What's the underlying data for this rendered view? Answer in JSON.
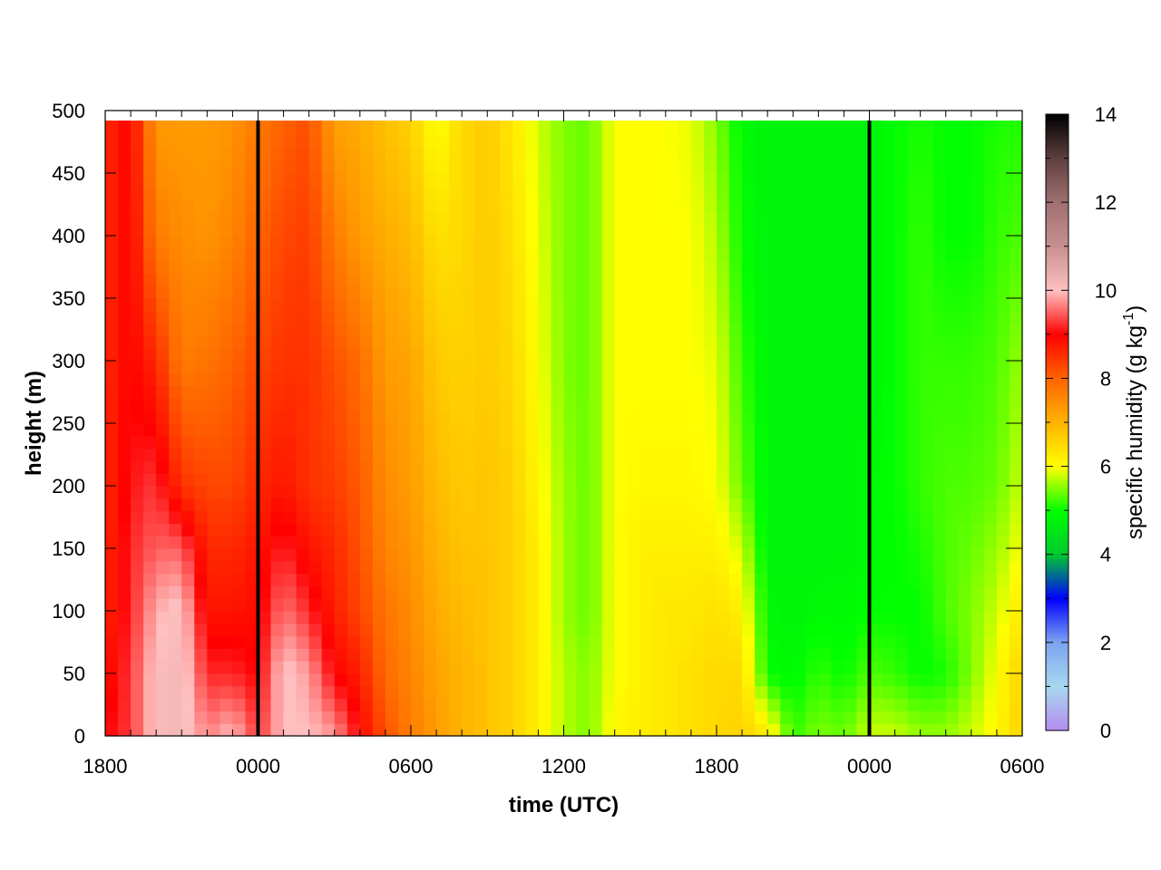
{
  "chart_data": {
    "type": "heatmap",
    "title": "",
    "xlabel": "time (UTC)",
    "ylabel": "height (m)",
    "x_tick_labels": [
      "1800",
      "0000",
      "0600",
      "1200",
      "1800",
      "0000",
      "0600"
    ],
    "x_tick_hours": [
      0,
      6,
      12,
      18,
      24,
      30,
      36
    ],
    "xlim_hours": [
      0,
      36
    ],
    "y_ticks": [
      0,
      50,
      100,
      150,
      200,
      250,
      300,
      350,
      400,
      450,
      500
    ],
    "y_tick_labels": [
      "0",
      "50",
      "100",
      "150",
      "200",
      "250",
      "300",
      "350",
      "400",
      "450",
      "500"
    ],
    "ylim": [
      0,
      500
    ],
    "data_top_height": 492,
    "colorbar": {
      "label_main": "specific humidity (g kg",
      "label_sup": "-1",
      "label_end": ")",
      "range": [
        0,
        14
      ],
      "ticks": [
        0,
        2,
        4,
        6,
        8,
        10,
        12,
        14
      ],
      "tick_labels": [
        "0",
        "2",
        "4",
        "6",
        "8",
        "10",
        "12",
        "14"
      ],
      "stops": [
        {
          "v": 0,
          "c": "#b48cf0"
        },
        {
          "v": 1,
          "c": "#a8d8f0"
        },
        {
          "v": 2,
          "c": "#7ea4f0"
        },
        {
          "v": 3,
          "c": "#0000ff"
        },
        {
          "v": 4,
          "c": "#00c830"
        },
        {
          "v": 5,
          "c": "#00ff00"
        },
        {
          "v": 6,
          "c": "#ffff00"
        },
        {
          "v": 7,
          "c": "#ffb400"
        },
        {
          "v": 8,
          "c": "#ff6400"
        },
        {
          "v": 9,
          "c": "#ff0000"
        },
        {
          "v": 10,
          "c": "#ffc0c0"
        },
        {
          "v": 11,
          "c": "#c89090"
        },
        {
          "v": 12,
          "c": "#a07070"
        },
        {
          "v": 13,
          "c": "#604040"
        },
        {
          "v": 14,
          "c": "#000000"
        }
      ]
    },
    "vertical_lines_hours": [
      6,
      30
    ],
    "grid": false,
    "legend": "none",
    "time_step_hours": 0.5,
    "height_step_m": 10,
    "profile_hours": [
      0,
      1,
      2,
      3,
      4,
      5,
      6,
      7,
      8,
      9,
      10,
      11,
      12,
      13,
      14,
      15,
      16,
      17,
      18,
      19,
      20,
      21,
      22,
      23,
      24,
      25,
      26,
      27,
      28,
      29,
      30,
      31,
      32,
      33,
      34,
      35,
      36
    ],
    "profile_heights_m": [
      0,
      50,
      100,
      150,
      200,
      300,
      400,
      500
    ],
    "profiles_g_per_kg": [
      [
        9.0,
        8.8,
        8.6,
        8.6,
        8.6,
        8.6,
        8.6,
        8.6
      ],
      [
        9.3,
        9.3,
        9.2,
        9.2,
        9.1,
        9.0,
        9.0,
        9.0
      ],
      [
        10.1,
        10.1,
        9.9,
        9.5,
        9.3,
        8.6,
        7.7,
        7.3
      ],
      [
        10.2,
        10.2,
        10.1,
        9.5,
        8.5,
        7.7,
        7.5,
        7.3
      ],
      [
        9.7,
        9.2,
        8.8,
        8.6,
        8.3,
        7.8,
        7.4,
        7.3
      ],
      [
        10.0,
        9.2,
        8.8,
        8.6,
        8.3,
        8.0,
        7.6,
        7.4
      ],
      [
        9.3,
        9.0,
        8.9,
        8.8,
        8.6,
        8.3,
        8.0,
        7.7
      ],
      [
        10.0,
        10.1,
        9.6,
        9.2,
        8.8,
        8.5,
        8.3,
        8.0
      ],
      [
        10.0,
        9.8,
        9.2,
        8.8,
        8.5,
        8.5,
        8.4,
        8.2
      ],
      [
        9.8,
        9.0,
        8.7,
        8.6,
        8.4,
        8.2,
        7.7,
        7.2
      ],
      [
        9.0,
        8.7,
        8.3,
        8.2,
        8.1,
        7.9,
        7.3,
        7.1
      ],
      [
        8.2,
        7.9,
        7.8,
        7.6,
        7.5,
        7.3,
        7.1,
        6.8
      ],
      [
        7.7,
        7.6,
        7.5,
        7.4,
        7.3,
        7.2,
        6.9,
        6.6
      ],
      [
        7.3,
        7.2,
        7.1,
        7.0,
        6.9,
        6.7,
        6.4,
        5.9
      ],
      [
        7.0,
        7.0,
        6.9,
        6.8,
        6.7,
        6.6,
        6.5,
        6.5
      ],
      [
        6.8,
        6.8,
        6.8,
        6.8,
        6.8,
        6.7,
        6.7,
        6.7
      ],
      [
        6.6,
        6.6,
        6.6,
        6.6,
        6.6,
        6.5,
        6.4,
        6.3
      ],
      [
        6.2,
        6.2,
        6.2,
        6.2,
        6.1,
        6.0,
        5.9,
        5.8
      ],
      [
        5.7,
        5.7,
        5.6,
        5.6,
        5.6,
        5.5,
        5.5,
        5.5
      ],
      [
        5.5,
        5.5,
        5.4,
        5.4,
        5.4,
        5.4,
        5.4,
        5.4
      ],
      [
        6.1,
        6.0,
        6.0,
        6.0,
        6.0,
        6.0,
        6.0,
        6.0
      ],
      [
        6.2,
        6.2,
        6.2,
        6.2,
        6.1,
        6.0,
        6.0,
        6.0
      ],
      [
        6.3,
        6.3,
        6.3,
        6.2,
        6.1,
        6.0,
        6.0,
        6.0
      ],
      [
        6.4,
        6.4,
        6.3,
        6.2,
        6.1,
        6.0,
        6.0,
        5.9
      ],
      [
        6.5,
        6.5,
        6.4,
        6.2,
        6.0,
        5.9,
        5.7,
        5.5
      ],
      [
        6.6,
        6.5,
        6.2,
        5.8,
        5.4,
        5.2,
        5.0,
        4.9
      ],
      [
        6.3,
        5.0,
        4.9,
        4.8,
        4.8,
        4.8,
        4.8,
        4.8
      ],
      [
        5.2,
        4.9,
        4.8,
        4.8,
        4.8,
        4.8,
        4.8,
        4.8
      ],
      [
        5.5,
        5.2,
        4.9,
        4.8,
        4.8,
        4.8,
        4.8,
        4.8
      ],
      [
        5.4,
        5.0,
        4.9,
        4.8,
        4.8,
        4.8,
        4.8,
        4.8
      ],
      [
        5.8,
        5.3,
        5.0,
        4.9,
        4.9,
        4.8,
        4.8,
        4.8
      ],
      [
        5.8,
        5.2,
        5.0,
        5.0,
        5.0,
        5.0,
        5.0,
        5.0
      ],
      [
        5.6,
        5.0,
        5.0,
        5.1,
        5.2,
        5.2,
        5.2,
        5.1
      ],
      [
        5.6,
        5.1,
        5.3,
        5.3,
        5.3,
        5.2,
        5.0,
        5.0
      ],
      [
        5.8,
        5.5,
        5.5,
        5.4,
        5.3,
        5.2,
        5.0,
        5.0
      ],
      [
        6.1,
        6.0,
        5.8,
        5.6,
        5.4,
        5.3,
        5.2,
        5.1
      ],
      [
        6.6,
        6.6,
        6.3,
        6.0,
        5.8,
        5.6,
        5.3,
        5.1
      ]
    ]
  }
}
